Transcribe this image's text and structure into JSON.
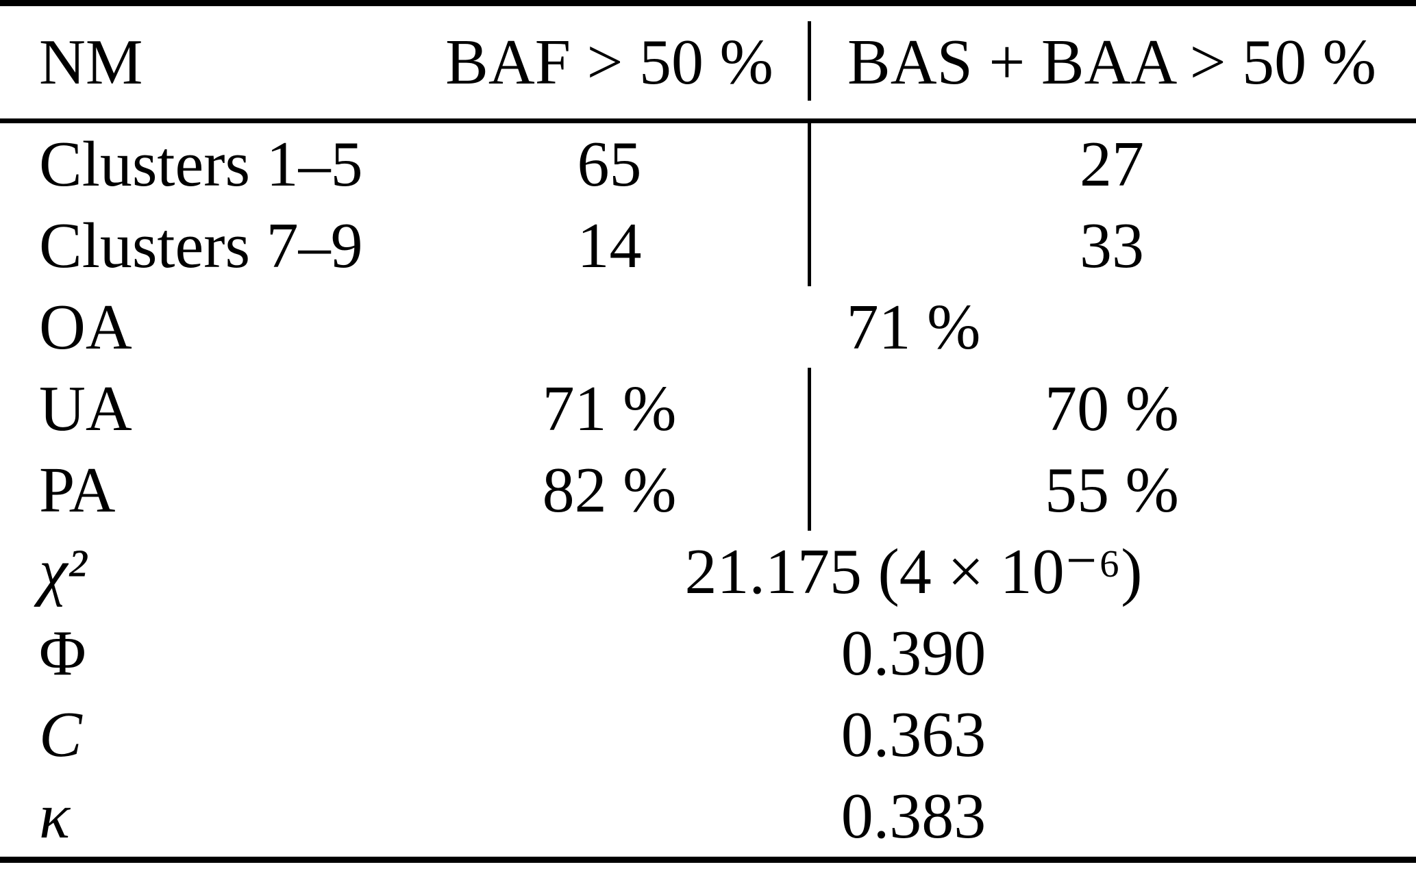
{
  "table": {
    "columns": {
      "label": "NM",
      "baf": "BAF > 50 %",
      "bas_baa": "BAS + BAA > 50 %"
    },
    "rows": [
      {
        "label": "Clusters 1–5",
        "baf": "65",
        "bas_baa": "27"
      },
      {
        "label": "Clusters 7–9",
        "baf": "14",
        "bas_baa": "33"
      },
      {
        "label": "OA",
        "combined": "71 %"
      },
      {
        "label": "UA",
        "baf": "71 %",
        "bas_baa": "70 %"
      },
      {
        "label": "PA",
        "baf": "82 %",
        "bas_baa": "55 %"
      },
      {
        "label": "χ²",
        "combined": "21.175 (4 × 10⁻⁶)"
      },
      {
        "label": "Φ",
        "combined": "0.390"
      },
      {
        "label": "C",
        "combined": "0.363"
      },
      {
        "label": "κ",
        "combined": "0.383"
      }
    ]
  },
  "colors": {
    "text": "#000000",
    "background": "#ffffff",
    "rule": "#000000"
  }
}
